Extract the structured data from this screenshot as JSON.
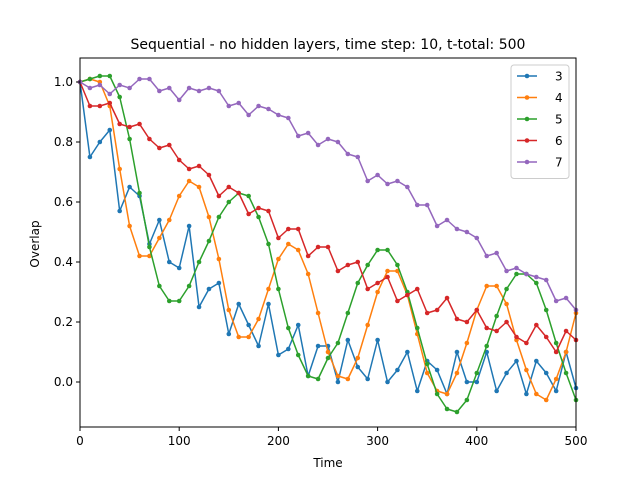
{
  "chart_data": {
    "type": "line",
    "title": "Sequential - no hidden layers, time step: 10, t-total: 500",
    "xlabel": "Time",
    "ylabel": "Overlap",
    "xlim": [
      0,
      500
    ],
    "ylim": [
      -0.15,
      1.08
    ],
    "xticks": [
      0,
      100,
      200,
      300,
      400,
      500
    ],
    "yticks": [
      0.0,
      0.2,
      0.4,
      0.6,
      0.8,
      1.0
    ],
    "xtick_labels": [
      "0",
      "100",
      "200",
      "300",
      "400",
      "500"
    ],
    "ytick_labels": [
      "0.0",
      "0.2",
      "0.4",
      "0.6",
      "0.8",
      "1.0"
    ],
    "grid": false,
    "legend_position": "top-right",
    "x": [
      0,
      10,
      20,
      30,
      40,
      50,
      60,
      70,
      80,
      90,
      100,
      110,
      120,
      130,
      140,
      150,
      160,
      170,
      180,
      190,
      200,
      210,
      220,
      230,
      240,
      250,
      260,
      270,
      280,
      290,
      300,
      310,
      320,
      330,
      340,
      350,
      360,
      370,
      380,
      390,
      400,
      410,
      420,
      430,
      440,
      450,
      460,
      470,
      480,
      490,
      500
    ],
    "series": [
      {
        "name": "3",
        "color": "#1f77b4",
        "values": [
          1.0,
          0.75,
          0.8,
          0.84,
          0.57,
          0.65,
          0.62,
          0.46,
          0.54,
          0.4,
          0.38,
          0.52,
          0.25,
          0.31,
          0.33,
          0.16,
          0.26,
          0.19,
          0.12,
          0.26,
          0.09,
          0.11,
          0.19,
          0.02,
          0.12,
          0.12,
          0.0,
          0.14,
          0.05,
          0.01,
          0.14,
          0.0,
          0.04,
          0.1,
          -0.03,
          0.07,
          0.04,
          -0.04,
          0.1,
          0.0,
          0.0,
          0.1,
          -0.03,
          0.03,
          0.07,
          -0.04,
          0.07,
          0.03,
          -0.03,
          0.1,
          -0.02
        ]
      },
      {
        "name": "4",
        "color": "#ff7f0e",
        "values": [
          1.0,
          1.01,
          1.0,
          0.92,
          0.71,
          0.52,
          0.42,
          0.42,
          0.48,
          0.54,
          0.62,
          0.67,
          0.65,
          0.55,
          0.41,
          0.24,
          0.15,
          0.15,
          0.21,
          0.31,
          0.41,
          0.46,
          0.44,
          0.36,
          0.23,
          0.1,
          0.02,
          0.01,
          0.08,
          0.19,
          0.3,
          0.37,
          0.37,
          0.29,
          0.16,
          0.03,
          -0.03,
          -0.04,
          0.03,
          0.13,
          0.24,
          0.32,
          0.32,
          0.26,
          0.14,
          0.04,
          -0.04,
          -0.06,
          0.01,
          0.1,
          0.23
        ]
      },
      {
        "name": "5",
        "color": "#2ca02c",
        "values": [
          1.0,
          1.01,
          1.02,
          1.02,
          0.95,
          0.81,
          0.63,
          0.45,
          0.32,
          0.27,
          0.27,
          0.32,
          0.4,
          0.47,
          0.55,
          0.6,
          0.63,
          0.62,
          0.55,
          0.46,
          0.31,
          0.18,
          0.09,
          0.02,
          0.01,
          0.08,
          0.13,
          0.23,
          0.33,
          0.39,
          0.44,
          0.44,
          0.39,
          0.3,
          0.18,
          0.06,
          -0.04,
          -0.09,
          -0.1,
          -0.06,
          0.03,
          0.12,
          0.22,
          0.31,
          0.36,
          0.36,
          0.33,
          0.24,
          0.13,
          0.03,
          -0.06
        ]
      },
      {
        "name": "6",
        "color": "#d62728",
        "values": [
          1.0,
          0.92,
          0.92,
          0.93,
          0.86,
          0.85,
          0.86,
          0.81,
          0.78,
          0.79,
          0.74,
          0.71,
          0.72,
          0.69,
          0.62,
          0.65,
          0.63,
          0.56,
          0.58,
          0.57,
          0.48,
          0.51,
          0.51,
          0.42,
          0.45,
          0.45,
          0.37,
          0.39,
          0.4,
          0.31,
          0.33,
          0.35,
          0.27,
          0.29,
          0.31,
          0.23,
          0.24,
          0.28,
          0.21,
          0.2,
          0.24,
          0.18,
          0.17,
          0.2,
          0.15,
          0.13,
          0.19,
          0.15,
          0.1,
          0.17,
          0.14
        ]
      },
      {
        "name": "7",
        "color": "#9467bd",
        "values": [
          1.0,
          0.98,
          0.99,
          0.96,
          0.99,
          0.98,
          1.01,
          1.01,
          0.97,
          0.98,
          0.94,
          0.98,
          0.97,
          0.98,
          0.97,
          0.92,
          0.93,
          0.89,
          0.92,
          0.91,
          0.89,
          0.88,
          0.82,
          0.83,
          0.79,
          0.81,
          0.8,
          0.76,
          0.75,
          0.67,
          0.69,
          0.66,
          0.67,
          0.65,
          0.59,
          0.59,
          0.52,
          0.54,
          0.51,
          0.5,
          0.48,
          0.42,
          0.43,
          0.37,
          0.38,
          0.36,
          0.35,
          0.34,
          0.27,
          0.28,
          0.24
        ]
      }
    ]
  }
}
